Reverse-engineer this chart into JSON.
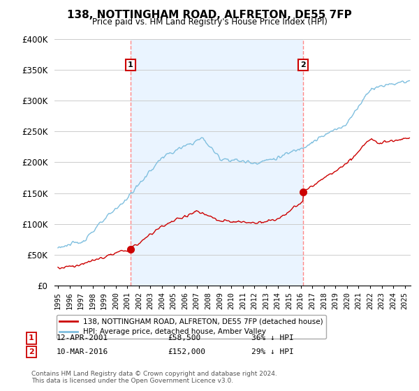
{
  "title": "138, NOTTINGHAM ROAD, ALFRETON, DE55 7FP",
  "subtitle": "Price paid vs. HM Land Registry's House Price Index (HPI)",
  "ylim": [
    0,
    400000
  ],
  "yticks": [
    0,
    50000,
    100000,
    150000,
    200000,
    250000,
    300000,
    350000,
    400000
  ],
  "ytick_labels": [
    "£0",
    "£50K",
    "£100K",
    "£150K",
    "£200K",
    "£250K",
    "£300K",
    "£350K",
    "£400K"
  ],
  "hpi_color": "#7fbfdf",
  "price_color": "#cc0000",
  "marker_color": "#cc0000",
  "vline_color": "#ff8888",
  "annotation_box_color": "#cc0000",
  "shade_color": "#ddeeff",
  "background_color": "#ffffff",
  "grid_color": "#cccccc",
  "legend_label_price": "138, NOTTINGHAM ROAD, ALFRETON, DE55 7FP (detached house)",
  "legend_label_hpi": "HPI: Average price, detached house, Amber Valley",
  "note1_label": "1",
  "note1_date": "12-APR-2001",
  "note1_price": "£58,500",
  "note1_pct": "36% ↓ HPI",
  "note2_label": "2",
  "note2_date": "10-MAR-2016",
  "note2_price": "£152,000",
  "note2_pct": "29% ↓ HPI",
  "footer": "Contains HM Land Registry data © Crown copyright and database right 2024.\nThis data is licensed under the Open Government Licence v3.0.",
  "sale1_year": 2001.28,
  "sale1_price": 58500,
  "sale2_year": 2016.19,
  "sale2_price": 152000,
  "xlim_start": 1994.7,
  "xlim_end": 2025.5
}
